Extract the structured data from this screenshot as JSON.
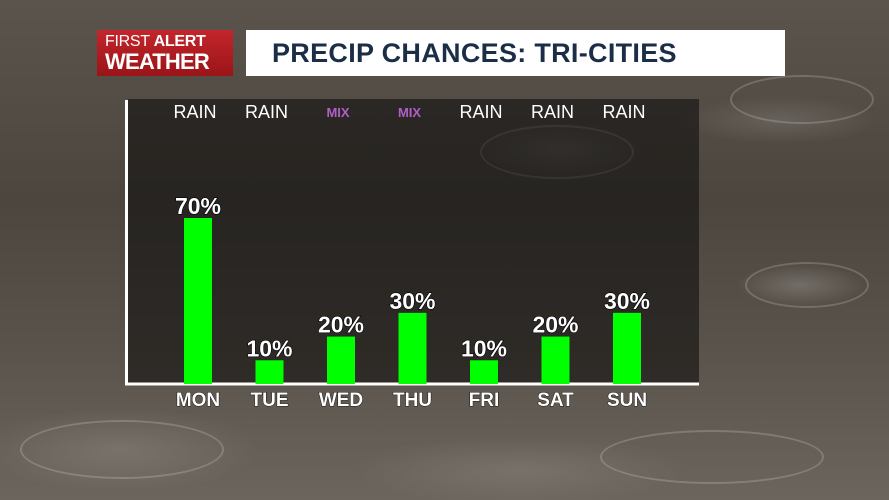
{
  "header": {
    "logo": {
      "line1_light": "FIRST",
      "line1_bold": "ALERT",
      "line2": "WEATHER"
    },
    "title": "PRECIP CHANCES: TRI-CITIES"
  },
  "colors": {
    "bar": "#00ff00",
    "mix_label": "#b15fc8",
    "title_text": "#1c2e47",
    "logo_red": "#c3262b"
  },
  "chart_data": {
    "type": "bar",
    "categories": [
      "MON",
      "TUE",
      "WED",
      "THU",
      "FRI",
      "SAT",
      "SUN"
    ],
    "values": [
      70,
      10,
      20,
      30,
      10,
      20,
      30
    ],
    "value_labels": [
      "70%",
      "10%",
      "20%",
      "30%",
      "10%",
      "20%",
      "30%"
    ],
    "precip_types": [
      "RAIN",
      "RAIN",
      "MIX",
      "MIX",
      "RAIN",
      "RAIN",
      "RAIN"
    ],
    "title": "PRECIP CHANCES: TRI-CITIES",
    "xlabel": "",
    "ylabel": "",
    "ylim": [
      0,
      100
    ],
    "grid": false,
    "unit": "%"
  }
}
